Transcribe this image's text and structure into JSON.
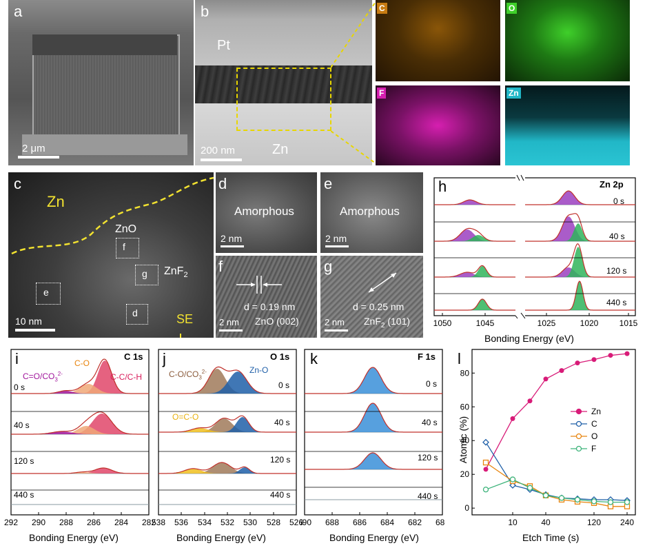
{
  "panels": {
    "a": {
      "label": "a",
      "scale_bar": "2 μm"
    },
    "b": {
      "label": "b",
      "pt_label": "Pt",
      "zn_label": "Zn",
      "scale_bar": "200 nm"
    },
    "eds": {
      "c_map": "C",
      "o_map": "O",
      "f_map": "F",
      "zn_map": "Zn",
      "colors": {
        "C": "#c77b12",
        "O": "#3fcf2a",
        "F": "#d61fb0",
        "Zn": "#21b7c7"
      }
    },
    "c": {
      "label": "c",
      "zn_label": "Zn",
      "zno_label": "ZnO",
      "znf2_label": "ZnF",
      "znf2_sub": "2",
      "se_label": "SE",
      "scale_bar": "10 nm",
      "boxes": [
        "f",
        "g",
        "e",
        "d"
      ]
    },
    "d": {
      "label": "d",
      "phase": "Amorphous",
      "scale_bar": "2 nm"
    },
    "e": {
      "label": "e",
      "phase": "Amorphous",
      "scale_bar": "2 nm"
    },
    "f": {
      "label": "f",
      "dspacing": "d = 0.19 nm",
      "plane": "ZnO (002)",
      "scale_bar": "2 nm"
    },
    "g": {
      "label": "g",
      "dspacing": "d = 0.25 nm",
      "plane_pre": "ZnF",
      "plane_sub": "2",
      "plane_post": " (101)",
      "scale_bar": "2 nm"
    }
  },
  "chart_data": [
    {
      "panel": "h",
      "type": "line",
      "title": "Zn 2p",
      "xlabel": "Bonding Energy (eV)",
      "xticks": [
        "1050",
        "1045",
        "1025",
        "1020",
        "1015"
      ],
      "axis_break": true,
      "series": [
        {
          "name": "0 s"
        },
        {
          "name": "40 s"
        },
        {
          "name": "120 s"
        },
        {
          "name": "440 s"
        }
      ]
    },
    {
      "panel": "i",
      "type": "line",
      "title": "C 1s",
      "xlabel": "Bonding Energy (eV)",
      "xticks": [
        "292",
        "290",
        "288",
        "286",
        "284",
        "282"
      ],
      "peak_labels": [
        "C=O/CO",
        "C-O",
        "C-C/C-H"
      ],
      "series": [
        {
          "name": "0 s"
        },
        {
          "name": "40 s"
        },
        {
          "name": "120 s"
        },
        {
          "name": "440 s"
        }
      ]
    },
    {
      "panel": "j",
      "type": "line",
      "title": "O 1s",
      "xlabel": "Bonding Energy (eV)",
      "xticks": [
        "538",
        "536",
        "534",
        "532",
        "530",
        "528",
        "526"
      ],
      "peak_labels": [
        "C-O/CO",
        "Zn-O",
        "O=C-O"
      ],
      "series": [
        {
          "name": "0 s"
        },
        {
          "name": "40 s"
        },
        {
          "name": "120 s"
        },
        {
          "name": "440 s"
        }
      ]
    },
    {
      "panel": "k",
      "type": "line",
      "title": "F 1s",
      "xlabel": "Bonding Energy (eV)",
      "xticks": [
        "690",
        "688",
        "686",
        "684",
        "682",
        "680"
      ],
      "series": [
        {
          "name": "0 s"
        },
        {
          "name": "40 s"
        },
        {
          "name": "120 s"
        },
        {
          "name": "440 s"
        }
      ]
    },
    {
      "panel": "l",
      "type": "line",
      "xlabel": "Etch Time (s)",
      "ylabel": "Atomic (%)",
      "xticks": [
        "10",
        "40",
        "120",
        "240"
      ],
      "yticks": [
        0,
        20,
        40,
        60,
        80
      ],
      "ylim": [
        -4,
        94
      ],
      "legend": "right",
      "x": [
        5,
        10,
        20,
        40,
        60,
        90,
        120,
        180,
        240
      ],
      "series": [
        {
          "name": "Zn",
          "color": "#d81b78",
          "values": [
            23,
            53,
            63.5,
            76.5,
            81.5,
            86,
            88,
            90.5,
            91.5
          ]
        },
        {
          "name": "C",
          "color": "#1f5fa8",
          "values": [
            39,
            13.5,
            11,
            8,
            6,
            5.5,
            5,
            5,
            4.5
          ]
        },
        {
          "name": "O",
          "color": "#e8850f",
          "values": [
            27,
            16,
            13,
            7.5,
            5,
            3.8,
            3,
            1,
            1
          ]
        },
        {
          "name": "F",
          "color": "#3cb37a",
          "values": [
            11,
            17,
            12,
            7.5,
            6,
            5,
            4,
            3.5,
            3.5
          ]
        }
      ]
    }
  ]
}
